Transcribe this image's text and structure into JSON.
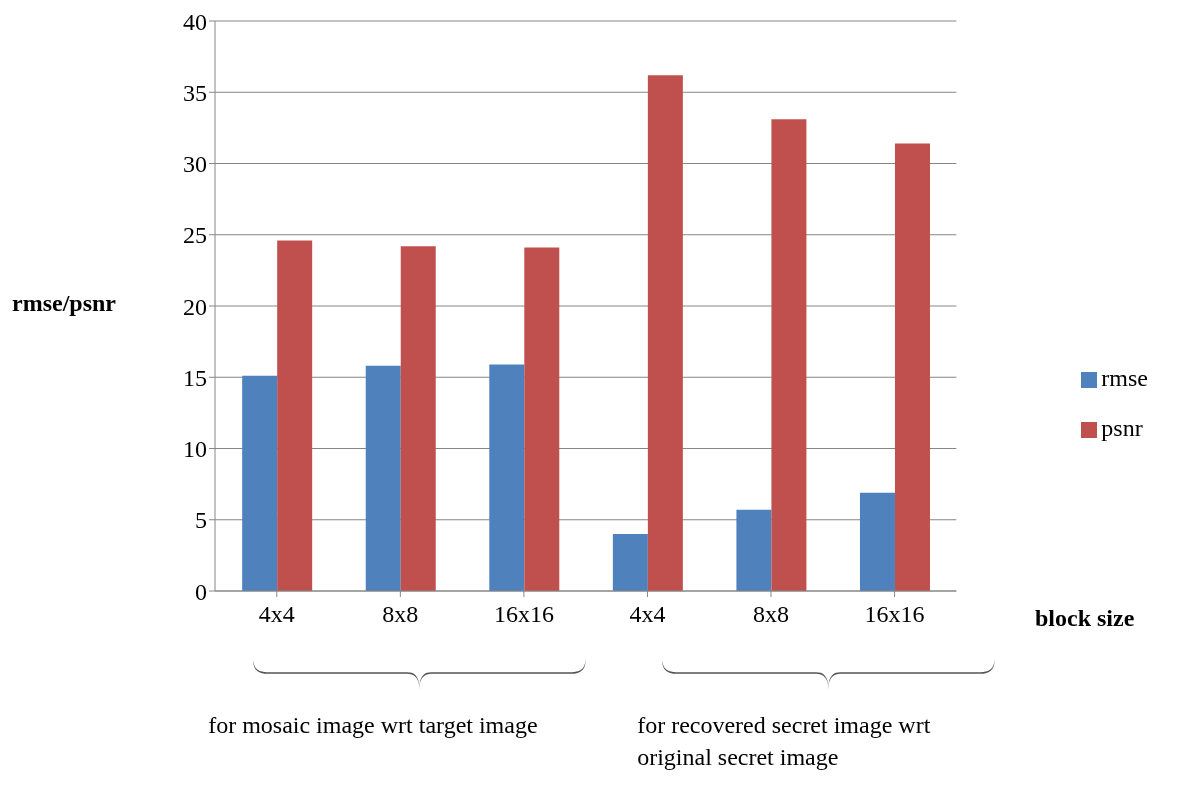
{
  "chart_data": {
    "type": "bar",
    "xlabel": "block size",
    "ylabel": "rmse/psnr",
    "categories": [
      "4x4",
      "8x8",
      "16x16",
      "4x4",
      "8x8",
      "16x16"
    ],
    "series": [
      {
        "name": "rmse",
        "color": "#4f81bd",
        "values": [
          15.1,
          15.8,
          15.9,
          4.0,
          5.7,
          6.9
        ]
      },
      {
        "name": "psnr",
        "color": "#c0504d",
        "values": [
          24.6,
          24.2,
          24.1,
          36.2,
          33.1,
          31.4
        ]
      }
    ],
    "ylim": [
      0,
      40
    ],
    "yticks": [
      0,
      5,
      10,
      15,
      20,
      25,
      30,
      35,
      40
    ],
    "grid": "y",
    "legend": "right",
    "annotations": [
      "for mosaic image wrt target image",
      "for recovered secret image wrt original secret image"
    ]
  }
}
